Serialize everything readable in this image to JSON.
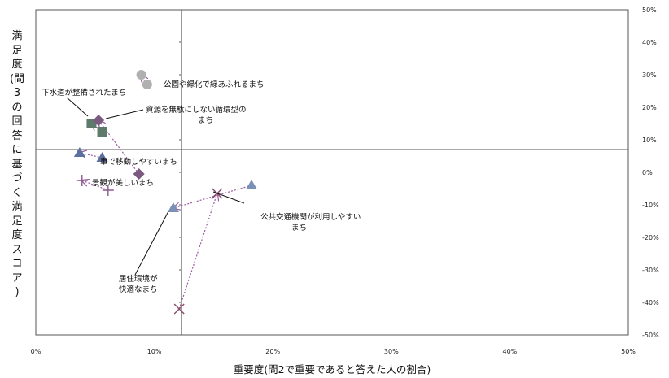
{
  "chart_data": {
    "type": "scatter",
    "title": "",
    "xlabel": "重要度(問2で重要であると答えた人の割合)",
    "ylabel": "満足度(問3の回答に基づく満足度スコア)",
    "xlim": [
      0,
      50
    ],
    "ylim": [
      -50,
      50
    ],
    "x_ticks": [
      "0%",
      "10%",
      "20%",
      "30%",
      "40%",
      "50%"
    ],
    "y_ticks": [
      "50%",
      "40%",
      "30%",
      "20%",
      "10%",
      "0%",
      "-10%",
      "-20%",
      "-30%",
      "-40%",
      "-50%"
    ],
    "crosshair": {
      "x": 12.3,
      "y": 7
    },
    "grid": false,
    "series": [
      {
        "marker": "circle",
        "color": "#b0b0b0",
        "points": [
          [
            8.9,
            30
          ],
          [
            9.4,
            27
          ]
        ],
        "annotation": "公園や緑化で緑あふれるまち"
      },
      {
        "marker": "square",
        "color": "#5e7a6a",
        "points": [
          [
            4.7,
            15
          ],
          [
            5.6,
            12.5
          ]
        ],
        "annotation": "下水道が整備されたまち"
      },
      {
        "marker": "diamond",
        "color": "#7a5a7f",
        "points": [
          [
            5.3,
            16
          ],
          [
            8.7,
            -0.5
          ]
        ],
        "annotation": "資源を無駄にしない循環型のまち"
      },
      {
        "marker": "triangle",
        "color": "#5d6f9e",
        "points": [
          [
            3.7,
            6
          ],
          [
            5.6,
            4.5
          ]
        ],
        "annotation": "車で移動しやすいまち"
      },
      {
        "marker": "plus",
        "color": "#8a5a8f",
        "points": [
          [
            3.9,
            -2.5
          ],
          [
            6.1,
            -5.5
          ]
        ],
        "annotation": "景観が美しいまち"
      },
      {
        "marker": "triangle",
        "color": "#7a90b5",
        "points": [
          [
            11.6,
            -11
          ],
          [
            18.2,
            -4
          ]
        ],
        "annotation": "居住環境が快適なまち"
      },
      {
        "marker": "x",
        "color": "#8a4a6a",
        "points": [
          [
            15.3,
            -6.5
          ],
          [
            12.1,
            -42
          ]
        ],
        "annotation": "公共交通機関が利用しやすいまち"
      }
    ]
  },
  "annotations": {
    "park": "公園や緑化で緑あふれるまち",
    "sewer": "下水道が整備されたまち",
    "recycle_1": "資源を無駄にしない循環型の",
    "recycle_2": "まち",
    "car": "車で移動しやすいまち",
    "scenery": "景観が美しいまち",
    "transit_1": "公共交通機関が利用しやすい",
    "transit_2": "まち",
    "living_1": "居住環境が",
    "living_2": "快適なまち"
  },
  "ylabel_chars": [
    "満",
    "足",
    "度",
    "(問",
    "3",
    "の",
    "回",
    "答",
    "に",
    "基",
    "づ",
    "く",
    "満",
    "足",
    "度",
    "ス",
    "コ",
    "ア",
    ")"
  ]
}
